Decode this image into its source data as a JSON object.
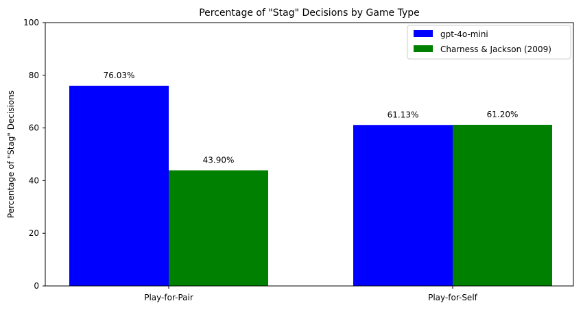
{
  "chart_data": {
    "type": "bar",
    "title": "Percentage of \"Stag\" Decisions by Game Type",
    "xlabel": "",
    "ylabel": "Percentage of \"Stag\" Decisions",
    "categories": [
      "Play-for-Pair",
      "Play-for-Self"
    ],
    "series": [
      {
        "name": "gpt-4o-mini",
        "color": "#0000ff",
        "values": [
          76.03,
          61.13
        ],
        "labels": [
          "76.03%",
          "61.13%"
        ]
      },
      {
        "name": "Charness & Jackson (2009)",
        "color": "#008000",
        "values": [
          43.9,
          61.2
        ],
        "labels": [
          "43.90%",
          "61.20%"
        ]
      }
    ],
    "ylim": [
      0,
      100
    ],
    "yticks": [
      0,
      20,
      40,
      60,
      80,
      100
    ],
    "grid": false,
    "legend_position": "top-right"
  }
}
